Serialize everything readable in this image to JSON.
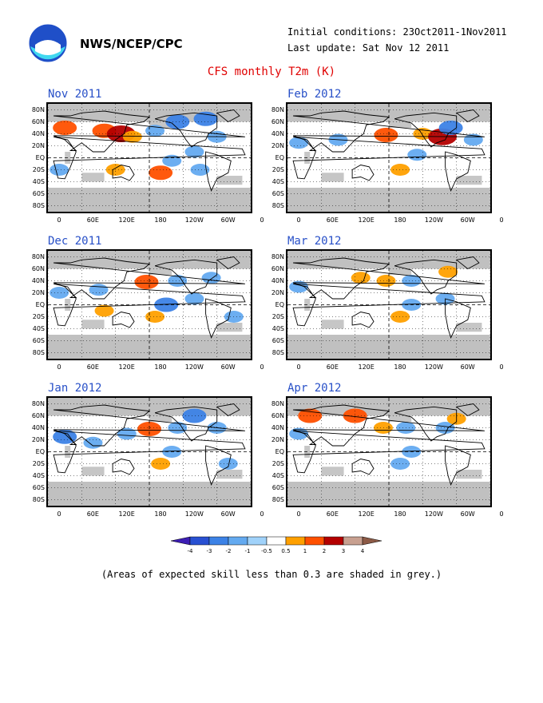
{
  "header": {
    "org": "NWS/NCEP/CPC",
    "initial_conditions": "Initial conditions: 23Oct2011-1Nov2011",
    "last_update": "Last update: Sat Nov 12 2011",
    "title": "CFS monthly T2m (K)"
  },
  "lat_labels": [
    "80N",
    "60N",
    "40N",
    "20N",
    "EQ",
    "20S",
    "40S",
    "60S",
    "80S"
  ],
  "lon_labels": [
    "0",
    "60E",
    "120E",
    "180",
    "120W",
    "60W",
    "0"
  ],
  "panels": [
    {
      "label": "Nov 2011",
      "anomalies": [
        {
          "lon": 30,
          "lat": 50,
          "v": 2
        },
        {
          "lon": 100,
          "lat": 45,
          "v": 2
        },
        {
          "lon": 130,
          "lat": 40,
          "v": 3
        },
        {
          "lon": 150,
          "lat": 35,
          "v": 1
        },
        {
          "lon": 190,
          "lat": 45,
          "v": -1
        },
        {
          "lon": 230,
          "lat": 60,
          "v": -2
        },
        {
          "lon": 280,
          "lat": 65,
          "v": -2
        },
        {
          "lon": 300,
          "lat": 35,
          "v": -1
        },
        {
          "lon": 220,
          "lat": -5,
          "v": -1
        },
        {
          "lon": 260,
          "lat": 10,
          "v": -1
        },
        {
          "lon": 20,
          "lat": -20,
          "v": -1
        },
        {
          "lon": 200,
          "lat": -25,
          "v": 2
        },
        {
          "lon": 120,
          "lat": -20,
          "v": 1
        },
        {
          "lon": 270,
          "lat": -20,
          "v": -1
        }
      ]
    },
    {
      "label": "Feb 2012",
      "anomalies": [
        {
          "lon": 175,
          "lat": 38,
          "v": 2
        },
        {
          "lon": 240,
          "lat": 40,
          "v": 1
        },
        {
          "lon": 275,
          "lat": 35,
          "v": 3
        },
        {
          "lon": 290,
          "lat": 50,
          "v": -2
        },
        {
          "lon": 330,
          "lat": 30,
          "v": -1
        },
        {
          "lon": 90,
          "lat": 30,
          "v": -1
        },
        {
          "lon": 200,
          "lat": -20,
          "v": 1
        },
        {
          "lon": 20,
          "lat": 25,
          "v": -1
        },
        {
          "lon": 230,
          "lat": 5,
          "v": -1
        }
      ]
    },
    {
      "label": "Dec 2011",
      "anomalies": [
        {
          "lon": 175,
          "lat": 38,
          "v": 2
        },
        {
          "lon": 230,
          "lat": 40,
          "v": -1
        },
        {
          "lon": 290,
          "lat": 45,
          "v": -1
        },
        {
          "lon": 210,
          "lat": 0,
          "v": -2
        },
        {
          "lon": 260,
          "lat": 10,
          "v": -1
        },
        {
          "lon": 100,
          "lat": -10,
          "v": 1
        },
        {
          "lon": 190,
          "lat": -20,
          "v": 1
        },
        {
          "lon": 20,
          "lat": 20,
          "v": -1
        },
        {
          "lon": 330,
          "lat": -20,
          "v": -1
        },
        {
          "lon": 90,
          "lat": 25,
          "v": -1
        }
      ]
    },
    {
      "label": "Mar 2012",
      "anomalies": [
        {
          "lon": 175,
          "lat": 40,
          "v": 1
        },
        {
          "lon": 220,
          "lat": 40,
          "v": -1
        },
        {
          "lon": 285,
          "lat": 55,
          "v": 1
        },
        {
          "lon": 220,
          "lat": 0,
          "v": -1
        },
        {
          "lon": 200,
          "lat": -20,
          "v": 1
        },
        {
          "lon": 280,
          "lat": 10,
          "v": -1
        },
        {
          "lon": 20,
          "lat": 30,
          "v": -1
        },
        {
          "lon": 130,
          "lat": 45,
          "v": 1
        }
      ]
    },
    {
      "label": "Jan 2012",
      "anomalies": [
        {
          "lon": 180,
          "lat": 38,
          "v": 2
        },
        {
          "lon": 230,
          "lat": 40,
          "v": -1
        },
        {
          "lon": 260,
          "lat": 60,
          "v": -2
        },
        {
          "lon": 220,
          "lat": 0,
          "v": -1
        },
        {
          "lon": 30,
          "lat": 25,
          "v": -2
        },
        {
          "lon": 80,
          "lat": 15,
          "v": -1
        },
        {
          "lon": 140,
          "lat": 30,
          "v": -1
        },
        {
          "lon": 200,
          "lat": -20,
          "v": 1
        },
        {
          "lon": 320,
          "lat": -20,
          "v": -1
        },
        {
          "lon": 300,
          "lat": 40,
          "v": -1
        }
      ]
    },
    {
      "label": "Apr 2012",
      "anomalies": [
        {
          "lon": 170,
          "lat": 40,
          "v": 1
        },
        {
          "lon": 40,
          "lat": 60,
          "v": 2
        },
        {
          "lon": 120,
          "lat": 60,
          "v": 2
        },
        {
          "lon": 210,
          "lat": 40,
          "v": -1
        },
        {
          "lon": 280,
          "lat": 40,
          "v": -1
        },
        {
          "lon": 220,
          "lat": 0,
          "v": -1
        },
        {
          "lon": 200,
          "lat": -20,
          "v": -1
        },
        {
          "lon": 20,
          "lat": 30,
          "v": -1
        },
        {
          "lon": 300,
          "lat": 55,
          "v": 1
        }
      ]
    }
  ],
  "colorbar": {
    "labels": [
      "-4",
      "-3",
      "-2",
      "-1",
      "-0.5",
      "0.5",
      "1",
      "2",
      "3",
      "4"
    ],
    "colors": [
      "#3c1eb4",
      "#2850d2",
      "#3c82e6",
      "#64aaf0",
      "#a0d2fa",
      "#ffffff",
      "#ffa000",
      "#ff5000",
      "#b40000",
      "#c8a090",
      "#8c5a46"
    ]
  },
  "colors": {
    "title_red": "#e00000",
    "label_blue": "#2850c8",
    "grey_mask": "#c0c0c0",
    "cold1": "#a0d2fa",
    "cold2": "#64aaf0",
    "cold3": "#3c82e6",
    "warm1": "#ffa000",
    "warm2": "#ff5000",
    "warm3": "#b40000"
  },
  "footnote": "(Areas of expected skill less than 0.3 are shaded in grey.)"
}
